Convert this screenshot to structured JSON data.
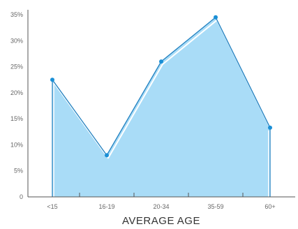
{
  "chart_data": {
    "type": "area",
    "categories": [
      "<15",
      "16-19",
      "20-34",
      "35-59",
      "60+"
    ],
    "values": [
      22.5,
      8,
      26,
      34.5,
      13.3
    ],
    "xlabel": "AVERAGE AGE",
    "ylabel": "",
    "ylim": [
      0,
      35
    ],
    "yticks": [
      "0",
      "5%",
      "10%",
      "15%",
      "20%",
      "25%",
      "30%",
      "35%"
    ],
    "grid": false,
    "colors": {
      "fill": "#a9dcf7",
      "line": "#1f7fbf",
      "point": "#1a8fd6",
      "highlight": "#ffffff",
      "axis": "#555555"
    }
  }
}
